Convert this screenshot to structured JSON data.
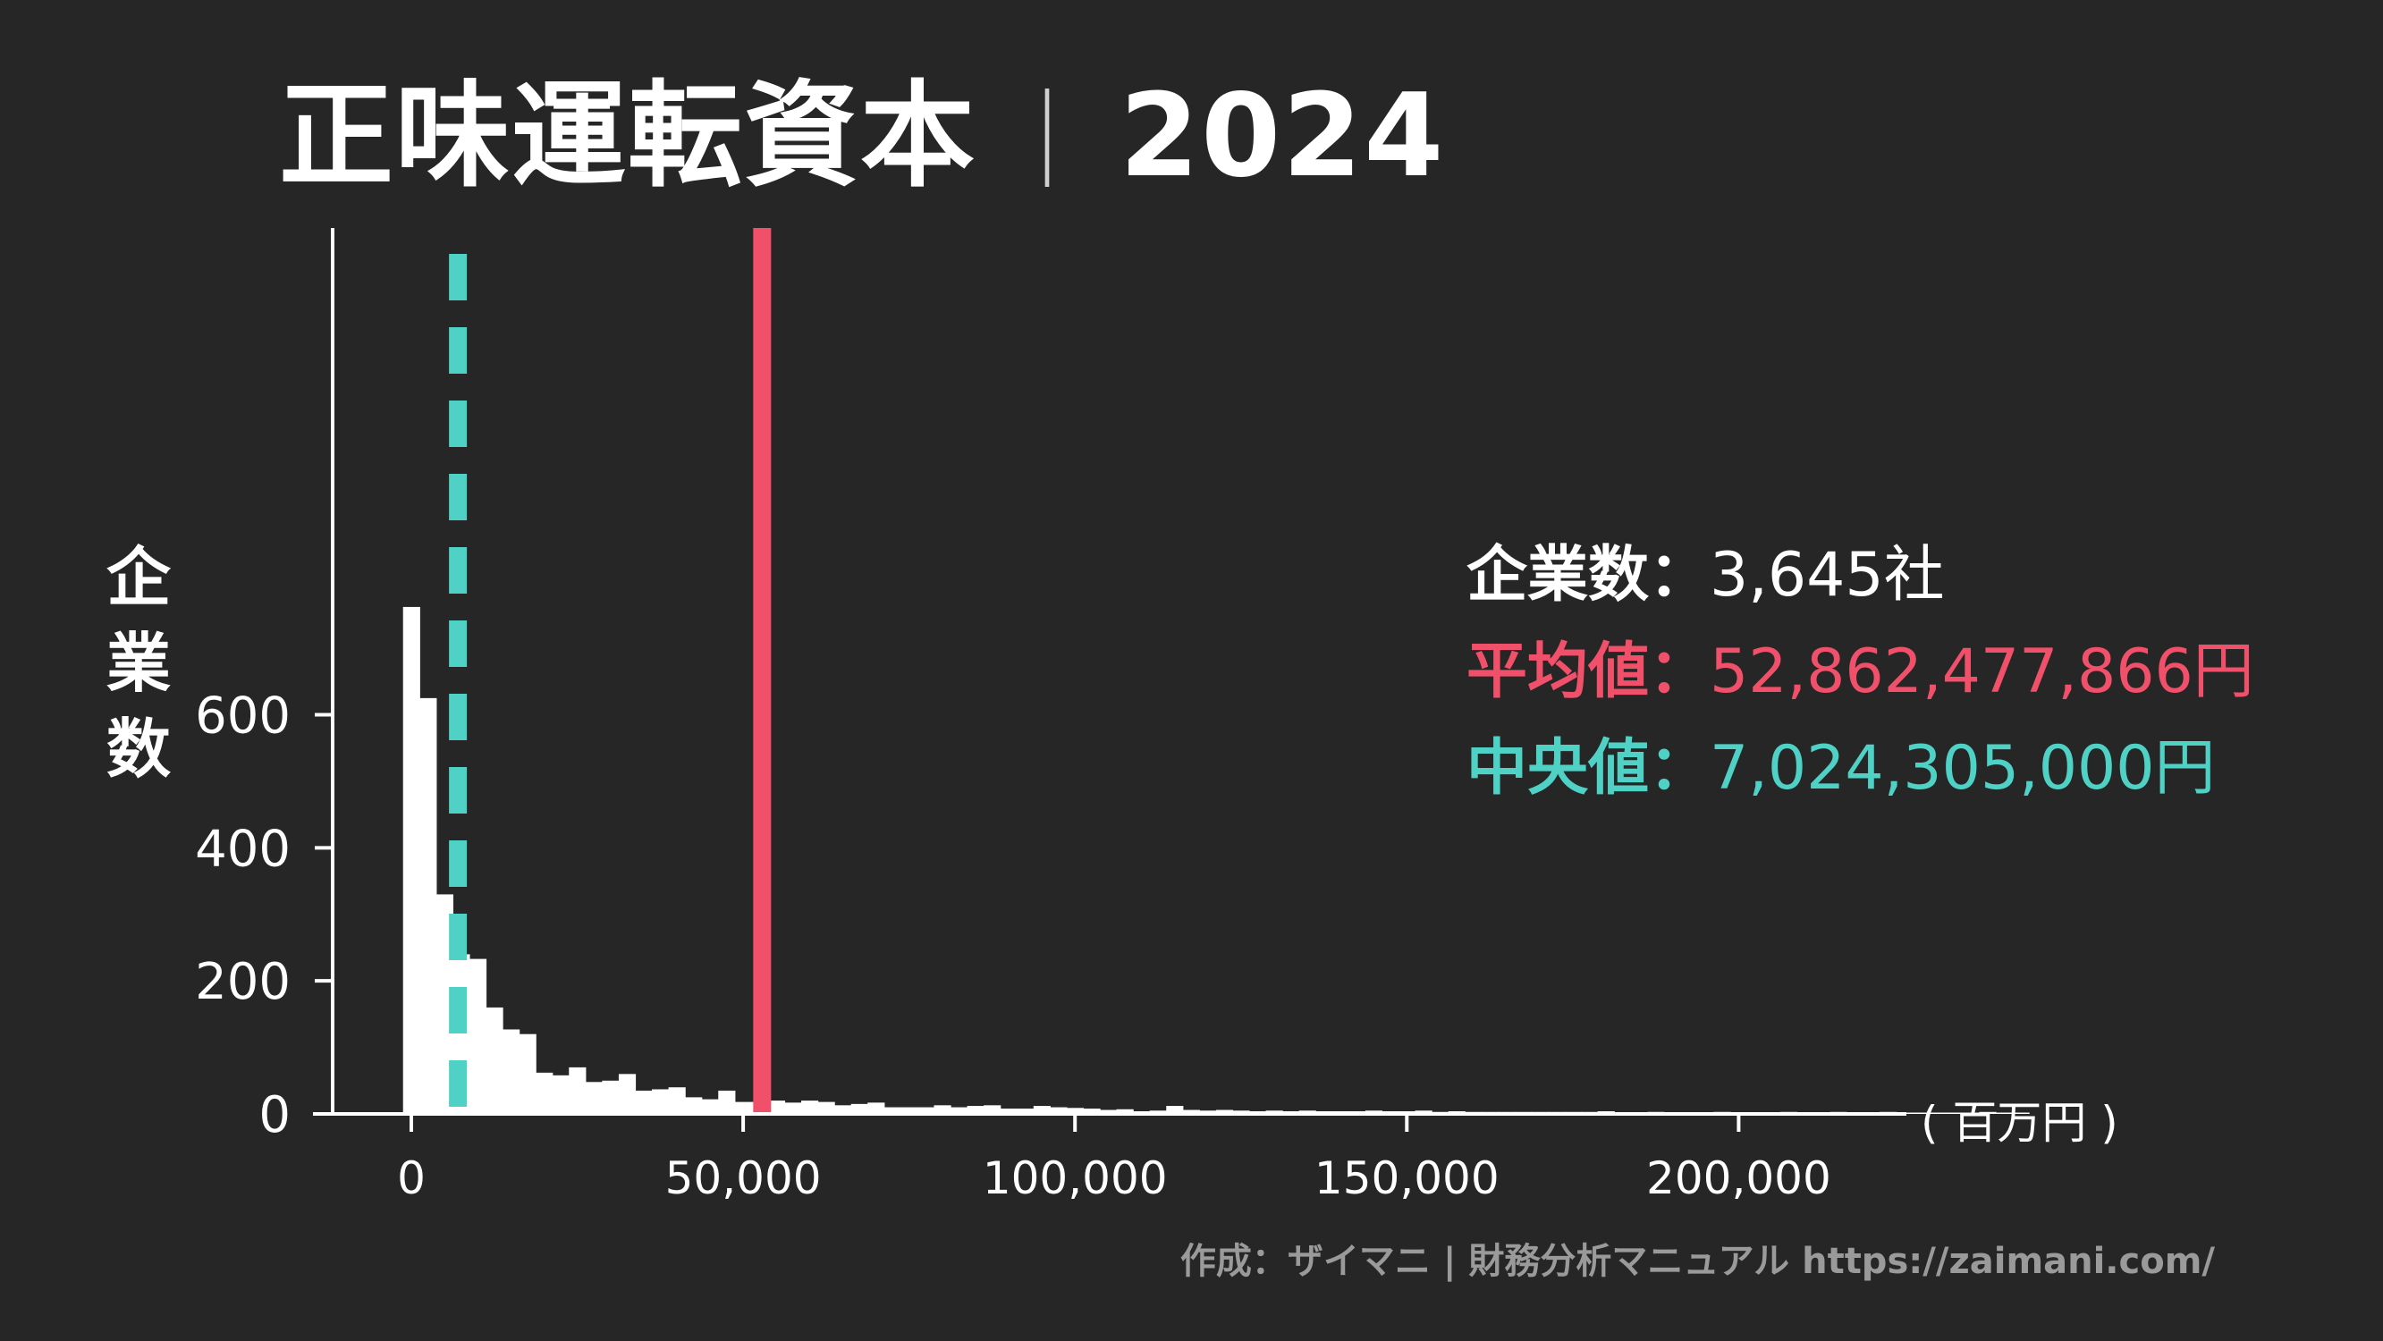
{
  "title": "正味運転資本",
  "title_separator": "｜",
  "title_year": "2024",
  "stats": {
    "count_label": "企業数：",
    "count_value": "3,645社",
    "mean_label": "平均値：",
    "mean_value": "52,862,477,866円",
    "median_label": "中央値：",
    "median_value": "7,024,305,000円"
  },
  "unit_label": "( 百万円 )",
  "credit": "作成：ザイマニ | 財務分析マニュアル https://zaimani.com/",
  "colors": {
    "bars": "#ffffff",
    "mean_line": "#f0506a",
    "median_line": "#4fd1c5",
    "background": "#262626"
  },
  "chart_data": {
    "type": "bar",
    "title": "正味運転資本｜2024",
    "ylabel": "企業数",
    "xlabel": "",
    "x_unit": "百万円",
    "bin_width": 2500,
    "bin_start": -1250,
    "counts": [
      762,
      625,
      330,
      240,
      233,
      160,
      127,
      120,
      62,
      58,
      70,
      48,
      50,
      60,
      35,
      37,
      40,
      25,
      22,
      35,
      18,
      18,
      20,
      17,
      20,
      18,
      13,
      15,
      17,
      10,
      10,
      10,
      13,
      10,
      12,
      13,
      8,
      8,
      12,
      10,
      9,
      8,
      6,
      7,
      4,
      5,
      12,
      6,
      5,
      6,
      5,
      4,
      5,
      4,
      5,
      4,
      4,
      4,
      5,
      4,
      4,
      5,
      3,
      4,
      3,
      3,
      3,
      3,
      3,
      3,
      3,
      3,
      4,
      2,
      2,
      3,
      2,
      2,
      2,
      3,
      2,
      2,
      2,
      3,
      2,
      2,
      3,
      2,
      2,
      3,
      2,
      2,
      2,
      2,
      2,
      3,
      2,
      2
    ],
    "xlim": [
      -15000,
      225000
    ],
    "ylim": [
      0,
      800
    ],
    "xticks": [
      0,
      50000,
      100000,
      150000,
      200000
    ],
    "xtick_labels": [
      "0",
      "50,000",
      "100,000",
      "150,000",
      "200,000"
    ],
    "yticks": [
      0,
      200,
      400,
      600
    ],
    "ytick_labels": [
      "0",
      "200",
      "400",
      "600"
    ],
    "mean": 52862.477866,
    "median": 7024.305,
    "grid": false,
    "legend": "none"
  }
}
